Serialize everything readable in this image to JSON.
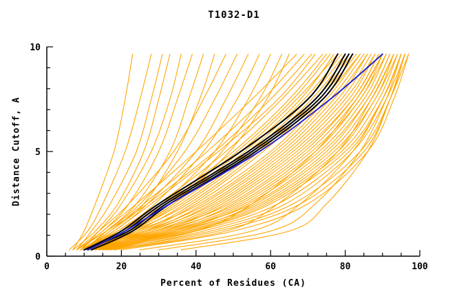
{
  "chart_data": {
    "type": "line",
    "title": "T1032-D1",
    "xlabel": "Percent of Residues (CA)",
    "ylabel": "Distance Cutoff, A",
    "xlim": [
      0,
      100
    ],
    "ylim": [
      0,
      10
    ],
    "xticks": [
      0,
      20,
      40,
      60,
      80,
      100
    ],
    "xminor_step": 5,
    "yticks": [
      0,
      5,
      10
    ],
    "yminor_step": 1,
    "grid": false,
    "legend": "none",
    "background_color": "#FFFFFF",
    "axis_color": "#000000",
    "anchor_y": [
      0.3,
      1.2,
      2.5,
      5,
      7.5,
      9.65
    ],
    "series_groups": [
      {
        "name": "model-curves-orange",
        "color": "#FFA500",
        "width": 1.1,
        "curves": [
          [
            7,
            10,
            13,
            18,
            21,
            23
          ],
          [
            6,
            11,
            15,
            21,
            25,
            28
          ],
          [
            8,
            12,
            17,
            24,
            28,
            31
          ],
          [
            7,
            13,
            19,
            26,
            30,
            33
          ],
          [
            9,
            14,
            20,
            28,
            33,
            36
          ],
          [
            8,
            15,
            22,
            30,
            35,
            39
          ],
          [
            10,
            16,
            24,
            33,
            38,
            42
          ],
          [
            9,
            17,
            26,
            35,
            41,
            45
          ],
          [
            8,
            14,
            22,
            34,
            42,
            48
          ],
          [
            10,
            16,
            25,
            37,
            45,
            51
          ],
          [
            9,
            18,
            27,
            40,
            48,
            54
          ],
          [
            11,
            19,
            29,
            42,
            51,
            57
          ],
          [
            10,
            20,
            31,
            45,
            54,
            60
          ],
          [
            12,
            21,
            33,
            47,
            57,
            63
          ],
          [
            11,
            22,
            34,
            49,
            59,
            65
          ],
          [
            9,
            15,
            24,
            40,
            55,
            67
          ],
          [
            10,
            17,
            26,
            43,
            58,
            69
          ],
          [
            8,
            16,
            27,
            45,
            60,
            71
          ],
          [
            11,
            18,
            28,
            46,
            62,
            72
          ],
          [
            9,
            19,
            30,
            48,
            63,
            74
          ],
          [
            12,
            20,
            31,
            50,
            65,
            75
          ],
          [
            10,
            21,
            32,
            51,
            66,
            76
          ],
          [
            11,
            22,
            34,
            53,
            68,
            77
          ],
          [
            9,
            20,
            33,
            52,
            67,
            78
          ],
          [
            12,
            23,
            35,
            54,
            69,
            79
          ],
          [
            10,
            22,
            36,
            55,
            70,
            80
          ],
          [
            13,
            24,
            37,
            56,
            71,
            81
          ],
          [
            11,
            23,
            38,
            57,
            72,
            82
          ],
          [
            10,
            25,
            39,
            58,
            73,
            83
          ],
          [
            12,
            26,
            40,
            60,
            74,
            84
          ],
          [
            11,
            24,
            41,
            61,
            75,
            84
          ],
          [
            13,
            27,
            42,
            62,
            76,
            85
          ],
          [
            10,
            26,
            43,
            63,
            77,
            86
          ],
          [
            12,
            28,
            44,
            64,
            78,
            86
          ],
          [
            11,
            27,
            45,
            65,
            79,
            87
          ],
          [
            13,
            29,
            46,
            66,
            80,
            88
          ],
          [
            12,
            30,
            47,
            67,
            81,
            88
          ],
          [
            14,
            31,
            48,
            68,
            82,
            89
          ],
          [
            11,
            29,
            49,
            69,
            82,
            89
          ],
          [
            13,
            32,
            50,
            70,
            83,
            90
          ],
          [
            12,
            31,
            51,
            71,
            84,
            90
          ],
          [
            14,
            33,
            52,
            72,
            84,
            91
          ],
          [
            13,
            34,
            53,
            73,
            85,
            91
          ],
          [
            15,
            35,
            54,
            74,
            86,
            92
          ],
          [
            12,
            33,
            55,
            75,
            86,
            92
          ],
          [
            14,
            36,
            56,
            76,
            87,
            93
          ],
          [
            13,
            35,
            57,
            77,
            88,
            93
          ],
          [
            15,
            37,
            58,
            78,
            88,
            94
          ],
          [
            14,
            38,
            59,
            79,
            89,
            94
          ],
          [
            16,
            39,
            60,
            80,
            90,
            95
          ],
          [
            15,
            40,
            62,
            81,
            90,
            95
          ],
          [
            17,
            42,
            64,
            82,
            91,
            96
          ],
          [
            16,
            44,
            66,
            84,
            92,
            96
          ],
          [
            18,
            46,
            68,
            85,
            92,
            97
          ],
          [
            20,
            50,
            70,
            86,
            93,
            97
          ],
          [
            14,
            40,
            55,
            72,
            83,
            90
          ],
          [
            18,
            48,
            62,
            78,
            87,
            93
          ],
          [
            25,
            55,
            68,
            82,
            90,
            95
          ],
          [
            36,
            65,
            75,
            86,
            92,
            96
          ],
          [
            30,
            60,
            72,
            84,
            91,
            95
          ]
        ]
      },
      {
        "name": "model-curves-black",
        "color": "#000000",
        "width": 2,
        "curves": [
          [
            10,
            20,
            30,
            52,
            70,
            78
          ],
          [
            11,
            21,
            31,
            54,
            72,
            80
          ],
          [
            10,
            22,
            32,
            55,
            73,
            81
          ],
          [
            12,
            23,
            33,
            56,
            74,
            82
          ]
        ]
      },
      {
        "name": "model-curve-blue",
        "color": "#2222CC",
        "width": 2,
        "curves": [
          [
            11,
            21,
            33,
            57,
            76,
            90
          ]
        ]
      }
    ]
  }
}
